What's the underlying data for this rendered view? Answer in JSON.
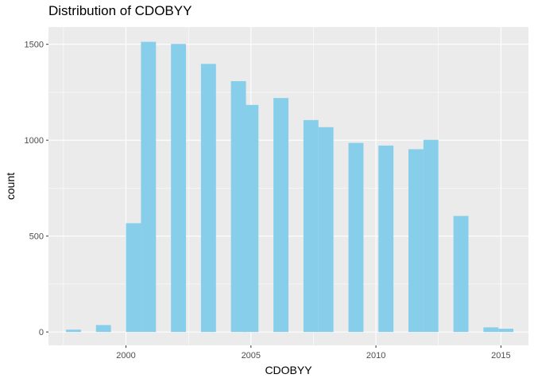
{
  "chart_data": {
    "type": "bar",
    "title": "Distribution of CDOBYY",
    "xlabel": "CDOBYY",
    "ylabel": "count",
    "xlim": [
      1996.9,
      2016.1
    ],
    "ylim": [
      -70,
      1590
    ],
    "x_ticks": [
      2000,
      2005,
      2010,
      2015
    ],
    "y_ticks": [
      0,
      500,
      1000,
      1500
    ],
    "grid": true,
    "bin_width": 0.6,
    "bar_color": "#87CEEB",
    "panel_color": "#EBEBEB",
    "grid_color": "#FFFFFF",
    "bins": [
      {
        "x": 1997.9,
        "count": 12
      },
      {
        "x": 1999.1,
        "count": 36
      },
      {
        "x": 2000.3,
        "count": 567
      },
      {
        "x": 2000.9,
        "count": 1513
      },
      {
        "x": 2002.1,
        "count": 1502
      },
      {
        "x": 2003.3,
        "count": 1398
      },
      {
        "x": 2004.5,
        "count": 1308
      },
      {
        "x": 2005.0,
        "count": 1184
      },
      {
        "x": 2006.2,
        "count": 1220
      },
      {
        "x": 2007.4,
        "count": 1105
      },
      {
        "x": 2008.0,
        "count": 1068
      },
      {
        "x": 2009.2,
        "count": 986
      },
      {
        "x": 2010.4,
        "count": 972
      },
      {
        "x": 2011.6,
        "count": 953
      },
      {
        "x": 2012.2,
        "count": 1002
      },
      {
        "x": 2013.4,
        "count": 605
      },
      {
        "x": 2014.6,
        "count": 24
      },
      {
        "x": 2015.2,
        "count": 17
      }
    ]
  }
}
